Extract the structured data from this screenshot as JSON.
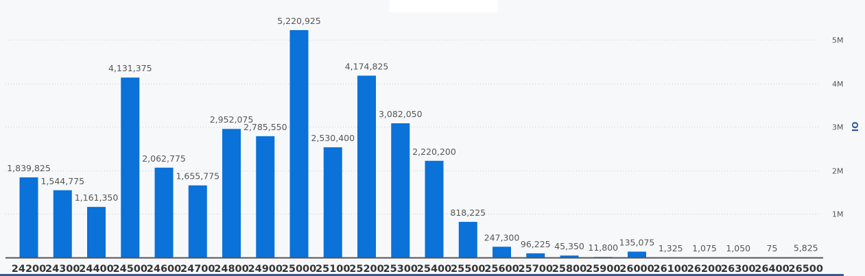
{
  "chart_data": {
    "type": "bar",
    "title": "",
    "xlabel": "",
    "ylabel": "OI",
    "ylim": [
      0,
      5700000
    ],
    "yticks": [
      1000000,
      2000000,
      3000000,
      4000000,
      5000000
    ],
    "ytick_labels": [
      "1M",
      "2M",
      "3M",
      "4M",
      "5M"
    ],
    "grid": true,
    "color": "#0a72d8",
    "categories": [
      "24200",
      "24300",
      "24400",
      "24500",
      "24600",
      "24700",
      "24800",
      "24900",
      "25000",
      "25100",
      "25200",
      "25300",
      "25400",
      "25500",
      "25600",
      "25700",
      "25800",
      "25900",
      "26000",
      "26100",
      "26200",
      "26300",
      "26400",
      "26500"
    ],
    "values": [
      1839825,
      1544775,
      1161350,
      4131375,
      2062775,
      1655775,
      2952075,
      2785550,
      5220925,
      2530400,
      4174825,
      3082050,
      2220200,
      818225,
      247300,
      96225,
      45350,
      11800,
      135075,
      1325,
      1075,
      1050,
      75,
      5825
    ],
    "data_labels": [
      "1,839,825",
      "1,544,775",
      "1,161,350",
      "4,131,375",
      "2,062,775",
      "1,655,775",
      "2,952,075",
      "2,785,550",
      "5,220,925",
      "2,530,400",
      "4,174,825",
      "3,082,050",
      "2,220,200",
      "818,225",
      "247,300",
      "96,225",
      "45,350",
      "11,800",
      "135,075",
      "1,325",
      "1,075",
      "1,050",
      "75",
      "5,825"
    ]
  }
}
